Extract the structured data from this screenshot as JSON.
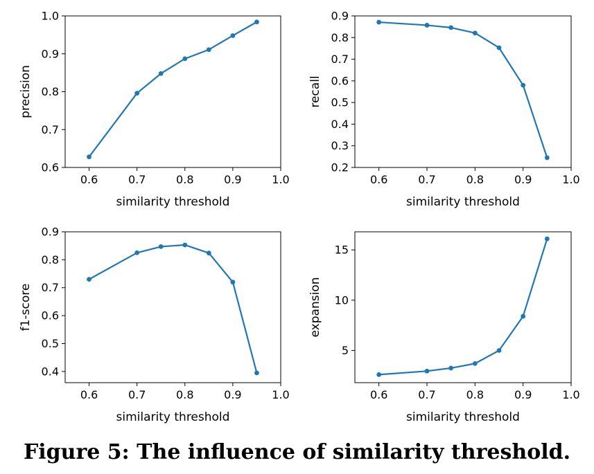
{
  "caption": "Figure 5: The influence of similarity threshold.",
  "colors": {
    "series": "#1f77b4",
    "axis": "#000000"
  },
  "chart_data": [
    {
      "type": "line",
      "title": "",
      "xlabel": "similarity threshold",
      "ylabel": "precision",
      "x": [
        0.6,
        0.7,
        0.75,
        0.8,
        0.85,
        0.9,
        0.95
      ],
      "y": [
        0.628,
        0.796,
        0.848,
        0.887,
        0.911,
        0.948,
        0.984
      ],
      "xlim": [
        0.55,
        1.0
      ],
      "ylim": [
        0.6,
        1.0
      ],
      "xticks": [
        "0.6",
        "0.7",
        "0.8",
        "0.9",
        "1.0"
      ],
      "xtick_values": [
        0.6,
        0.7,
        0.8,
        0.9,
        1.0
      ],
      "yticks": [
        "0.6",
        "0.7",
        "0.8",
        "0.9",
        "1.0"
      ],
      "ytick_values": [
        0.6,
        0.7,
        0.8,
        0.9,
        1.0
      ],
      "grid": false
    },
    {
      "type": "line",
      "title": "",
      "xlabel": "similarity threshold",
      "ylabel": "recall",
      "x": [
        0.6,
        0.7,
        0.75,
        0.8,
        0.85,
        0.9,
        0.95
      ],
      "y": [
        0.871,
        0.857,
        0.846,
        0.821,
        0.753,
        0.58,
        0.245
      ],
      "xlim": [
        0.55,
        1.0
      ],
      "ylim": [
        0.2,
        0.9
      ],
      "xticks": [
        "0.6",
        "0.7",
        "0.8",
        "0.9",
        "1.0"
      ],
      "xtick_values": [
        0.6,
        0.7,
        0.8,
        0.9,
        1.0
      ],
      "yticks": [
        "0.2",
        "0.3",
        "0.4",
        "0.5",
        "0.6",
        "0.7",
        "0.8",
        "0.9"
      ],
      "ytick_values": [
        0.2,
        0.3,
        0.4,
        0.5,
        0.6,
        0.7,
        0.8,
        0.9
      ],
      "grid": false
    },
    {
      "type": "line",
      "title": "",
      "xlabel": "similarity threshold",
      "ylabel": "f1-score",
      "x": [
        0.6,
        0.7,
        0.75,
        0.8,
        0.85,
        0.9,
        0.95
      ],
      "y": [
        0.73,
        0.825,
        0.847,
        0.853,
        0.824,
        0.72,
        0.395
      ],
      "xlim": [
        0.55,
        1.0
      ],
      "ylim": [
        0.36,
        0.9
      ],
      "xticks": [
        "0.6",
        "0.7",
        "0.8",
        "0.9",
        "1.0"
      ],
      "xtick_values": [
        0.6,
        0.7,
        0.8,
        0.9,
        1.0
      ],
      "yticks": [
        "0.4",
        "0.5",
        "0.6",
        "0.7",
        "0.8",
        "0.9"
      ],
      "ytick_values": [
        0.4,
        0.5,
        0.6,
        0.7,
        0.8,
        0.9
      ],
      "grid": false
    },
    {
      "type": "line",
      "title": "",
      "xlabel": "similarity threshold",
      "ylabel": "expansion",
      "x": [
        0.6,
        0.7,
        0.75,
        0.8,
        0.85,
        0.9,
        0.95
      ],
      "y": [
        2.6,
        2.95,
        3.25,
        3.7,
        5.0,
        8.4,
        16.1
      ],
      "xlim": [
        0.55,
        1.0
      ],
      "ylim": [
        1.8,
        16.8
      ],
      "xticks": [
        "0.6",
        "0.7",
        "0.8",
        "0.9",
        "1.0"
      ],
      "xtick_values": [
        0.6,
        0.7,
        0.8,
        0.9,
        1.0
      ],
      "yticks": [
        "5",
        "10",
        "15"
      ],
      "ytick_values": [
        5,
        10,
        15
      ],
      "grid": false
    }
  ]
}
